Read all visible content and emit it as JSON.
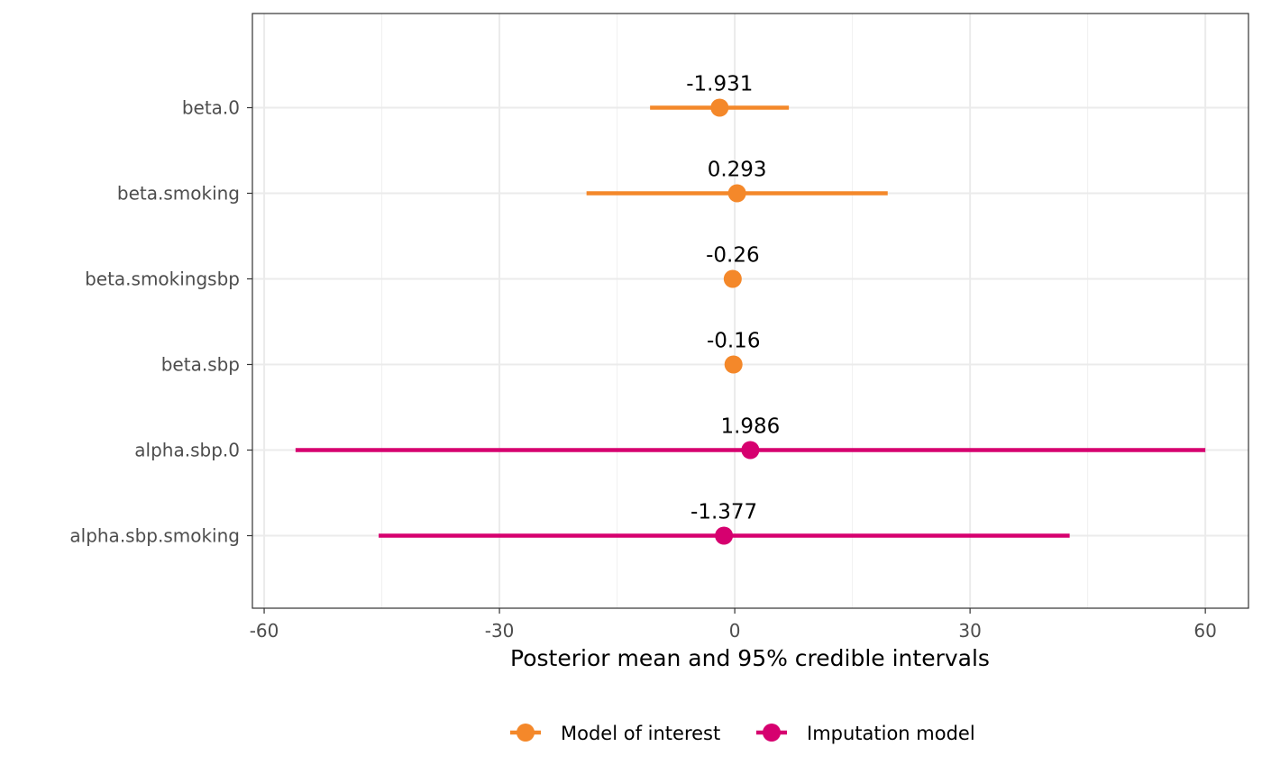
{
  "chart_data": {
    "type": "scatter",
    "xlabel": "Posterior mean and 95% credible intervals",
    "ylabel": "",
    "xlim": [
      -61.5,
      65.5
    ],
    "x_ticks": [
      -60,
      -30,
      0,
      30,
      60
    ],
    "x_tick_labels": [
      "-60",
      "-30",
      "0",
      "30",
      "60"
    ],
    "grid": true,
    "legend_position": "bottom",
    "categories": [
      "beta.0",
      "beta.smoking",
      "beta.smokingsbp",
      "beta.sbp",
      "alpha.sbp.0",
      "alpha.sbp.smoking"
    ],
    "series": [
      {
        "name": "Model of interest",
        "color": "#F4882A",
        "points": [
          {
            "category": "beta.0",
            "mean": -1.931,
            "lower": -10.8,
            "upper": 6.9,
            "label": "-1.931"
          },
          {
            "category": "beta.smoking",
            "mean": 0.293,
            "lower": -18.9,
            "upper": 19.5,
            "label": "0.293"
          },
          {
            "category": "beta.smokingsbp",
            "mean": -0.26,
            "lower": -0.5,
            "upper": -0.02,
            "label": "-0.26"
          },
          {
            "category": "beta.sbp",
            "mean": -0.16,
            "lower": -0.4,
            "upper": 0.08,
            "label": "-0.16"
          }
        ]
      },
      {
        "name": "Imputation model",
        "color": "#D6006F",
        "points": [
          {
            "category": "alpha.sbp.0",
            "mean": 1.986,
            "lower": -56.0,
            "upper": 60.0,
            "label": "1.986"
          },
          {
            "category": "alpha.sbp.smoking",
            "mean": -1.377,
            "lower": -45.4,
            "upper": 42.7,
            "label": "-1.377"
          }
        ]
      }
    ]
  }
}
